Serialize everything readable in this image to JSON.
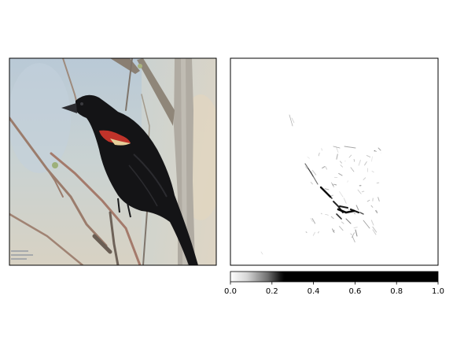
{
  "chart_data": [
    {
      "type": "image",
      "content": "photo of a red-winged blackbird perched on bare branches; small watermark text in lower-left corner",
      "axes": "no ticks or labels"
    },
    {
      "type": "heatmap",
      "content": "saliency map in grayscale (white = 0, black = high); sparse dark marks concentrated in the lower-middle region",
      "axes": "no ticks or labels",
      "colorbar": {
        "orientation": "horizontal",
        "range": [
          0.0,
          1.0
        ],
        "ticks": [
          "0.0",
          "0.2",
          "0.4",
          "0.6",
          "0.8",
          "1.0"
        ],
        "colormap": "gray_r, saturating to black above ~0.25"
      }
    }
  ],
  "colors": {
    "frame": "#000000",
    "background": "#ffffff"
  }
}
